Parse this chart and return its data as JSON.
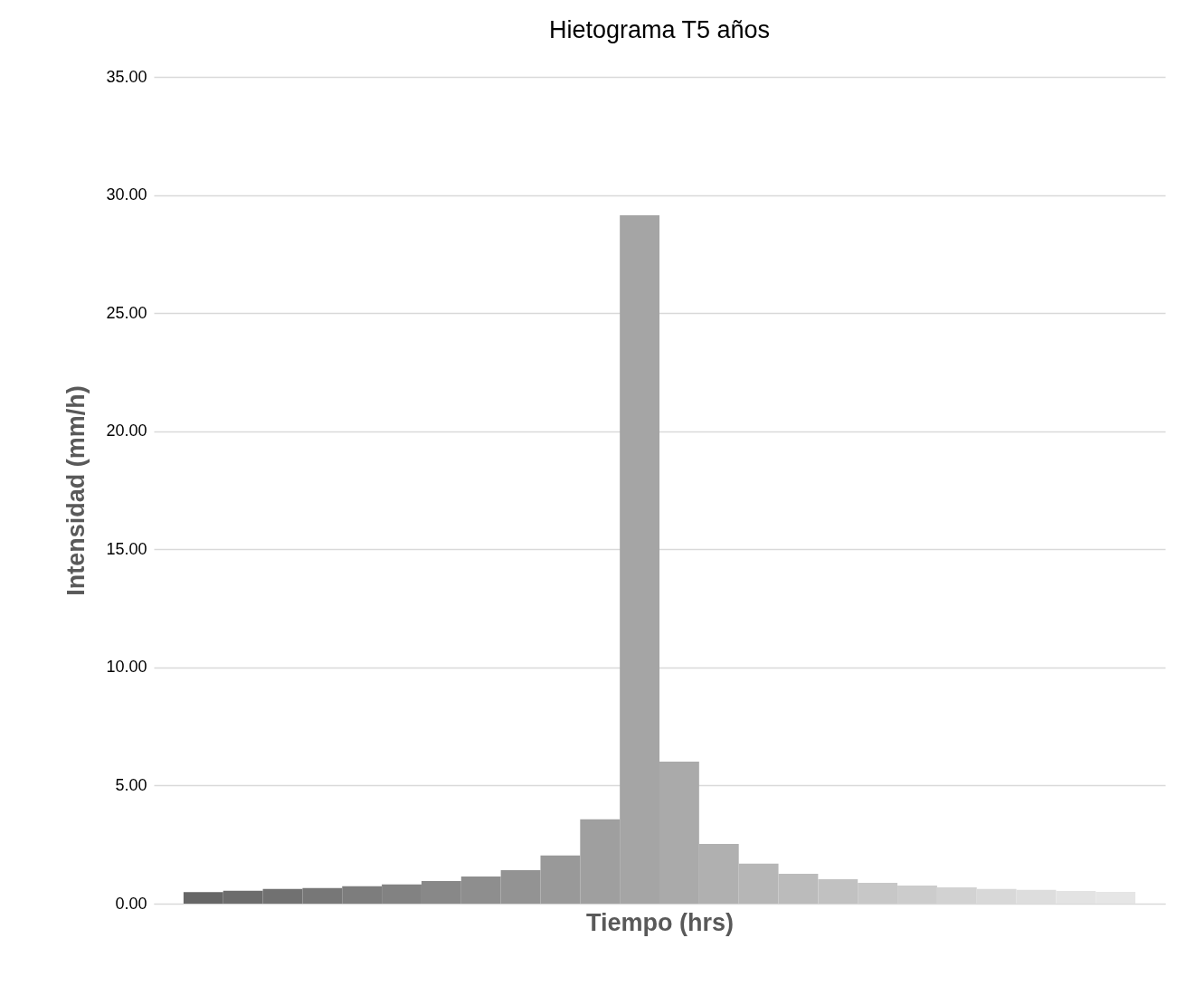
{
  "chart_data": {
    "type": "bar",
    "title": "Hietograma T5 años",
    "xlabel": "Tiempo (hrs)",
    "ylabel": "Intensidad (mm/h)",
    "categories": [
      null,
      null,
      null,
      null,
      null,
      null,
      null,
      null,
      null,
      null,
      null,
      null,
      null,
      null,
      null,
      null,
      null,
      null,
      null,
      null,
      null,
      null,
      null,
      null
    ],
    "values": [
      0.49,
      0.55,
      0.62,
      0.66,
      0.74,
      0.81,
      0.96,
      1.15,
      1.42,
      2.04,
      3.57,
      29.14,
      6.01,
      2.53,
      1.69,
      1.26,
      1.03,
      0.88,
      0.77,
      0.69,
      0.62,
      0.58,
      0.54,
      0.5
    ],
    "colors": [
      "#666666",
      "#6c6c6c",
      "#717171",
      "#777777",
      "#7d7d7d",
      "#828282",
      "#888888",
      "#8e8e8e",
      "#939393",
      "#999999",
      "#9f9f9f",
      "#a5a5a5",
      "#aaaaaa",
      "#b0b0b0",
      "#b6b6b6",
      "#bbbbbb",
      "#c1c1c1",
      "#c7c7c7",
      "#cccccc",
      "#d2d2d2",
      "#d8d8d8",
      "#dddddd",
      "#e3e3e3",
      "#e6e6e6"
    ],
    "ylim": [
      0,
      35
    ],
    "yticks": [
      {
        "value": 0,
        "label": "0.00"
      },
      {
        "value": 5,
        "label": "5.00"
      },
      {
        "value": 10,
        "label": "10.00"
      },
      {
        "value": 15,
        "label": "15.00"
      },
      {
        "value": 20,
        "label": "20.00"
      },
      {
        "value": 25,
        "label": "25.00"
      },
      {
        "value": 30,
        "label": "30.00"
      },
      {
        "value": 35,
        "label": "35.00"
      }
    ],
    "grid": "y",
    "tick_labels": "y"
  }
}
